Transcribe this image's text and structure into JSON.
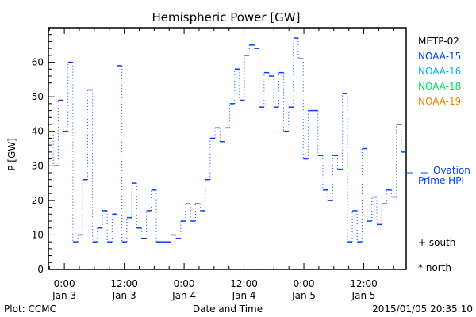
{
  "chart_data": {
    "type": "line",
    "title": "Hemispheric Power [GW]",
    "xlabel": "Date and Time",
    "ylabel": "P [GW]",
    "ylim": [
      0,
      70
    ],
    "yticks": [
      0,
      10,
      20,
      30,
      40,
      50,
      60
    ],
    "xticks": [
      {
        "time": "0:00",
        "date": "Jan 3",
        "hour": 0
      },
      {
        "time": "12:00",
        "date": "Jan 3",
        "hour": 12
      },
      {
        "time": "0:00",
        "date": "Jan 4",
        "hour": 24
      },
      {
        "time": "12:00",
        "date": "Jan 4",
        "hour": 36
      },
      {
        "time": "0:00",
        "date": "Jan 5",
        "hour": 48
      },
      {
        "time": "12:00",
        "date": "Jan 5",
        "hour": 60
      }
    ],
    "xlim_hours": [
      -3.2,
      68.5
    ],
    "series": [
      {
        "name": "NOAA-15",
        "color": "#0040ff",
        "step_hours": 1,
        "values": [
          40,
          30,
          49,
          40,
          60,
          8,
          10,
          26,
          52,
          8,
          12,
          17,
          8,
          16,
          59,
          8,
          15,
          25,
          12,
          9,
          17,
          23,
          8,
          8,
          8,
          10,
          9,
          14,
          19,
          14,
          19,
          17,
          26,
          38,
          41,
          37,
          41,
          48,
          58,
          49,
          62,
          65,
          64,
          47,
          57,
          56,
          47,
          57,
          40,
          47,
          67,
          61,
          32,
          46,
          46,
          33,
          23,
          20,
          33,
          29,
          51,
          8,
          17,
          8,
          35,
          14,
          21,
          13,
          19,
          23,
          21,
          42,
          34
        ]
      }
    ],
    "legend": {
      "placement": "right",
      "items": [
        {
          "label": "METP-02",
          "color": "#000000"
        },
        {
          "label": "NOAA-15",
          "color": "#0040ff"
        },
        {
          "label": "NOAA-16",
          "color": "#00b0ff"
        },
        {
          "label": "NOAA-18",
          "color": "#00e060"
        },
        {
          "label": "NOAA-19",
          "color": "#ff8000"
        }
      ]
    },
    "ovation": {
      "label1": "Ovation",
      "label2": "Prime HPI",
      "value": 28,
      "color": "#0040ff"
    },
    "markers": {
      "south": "+ south",
      "north": "* north"
    }
  },
  "footer": {
    "credit": "Plot: CCMC",
    "timestamp": "2015/01/05 20:35:10"
  }
}
